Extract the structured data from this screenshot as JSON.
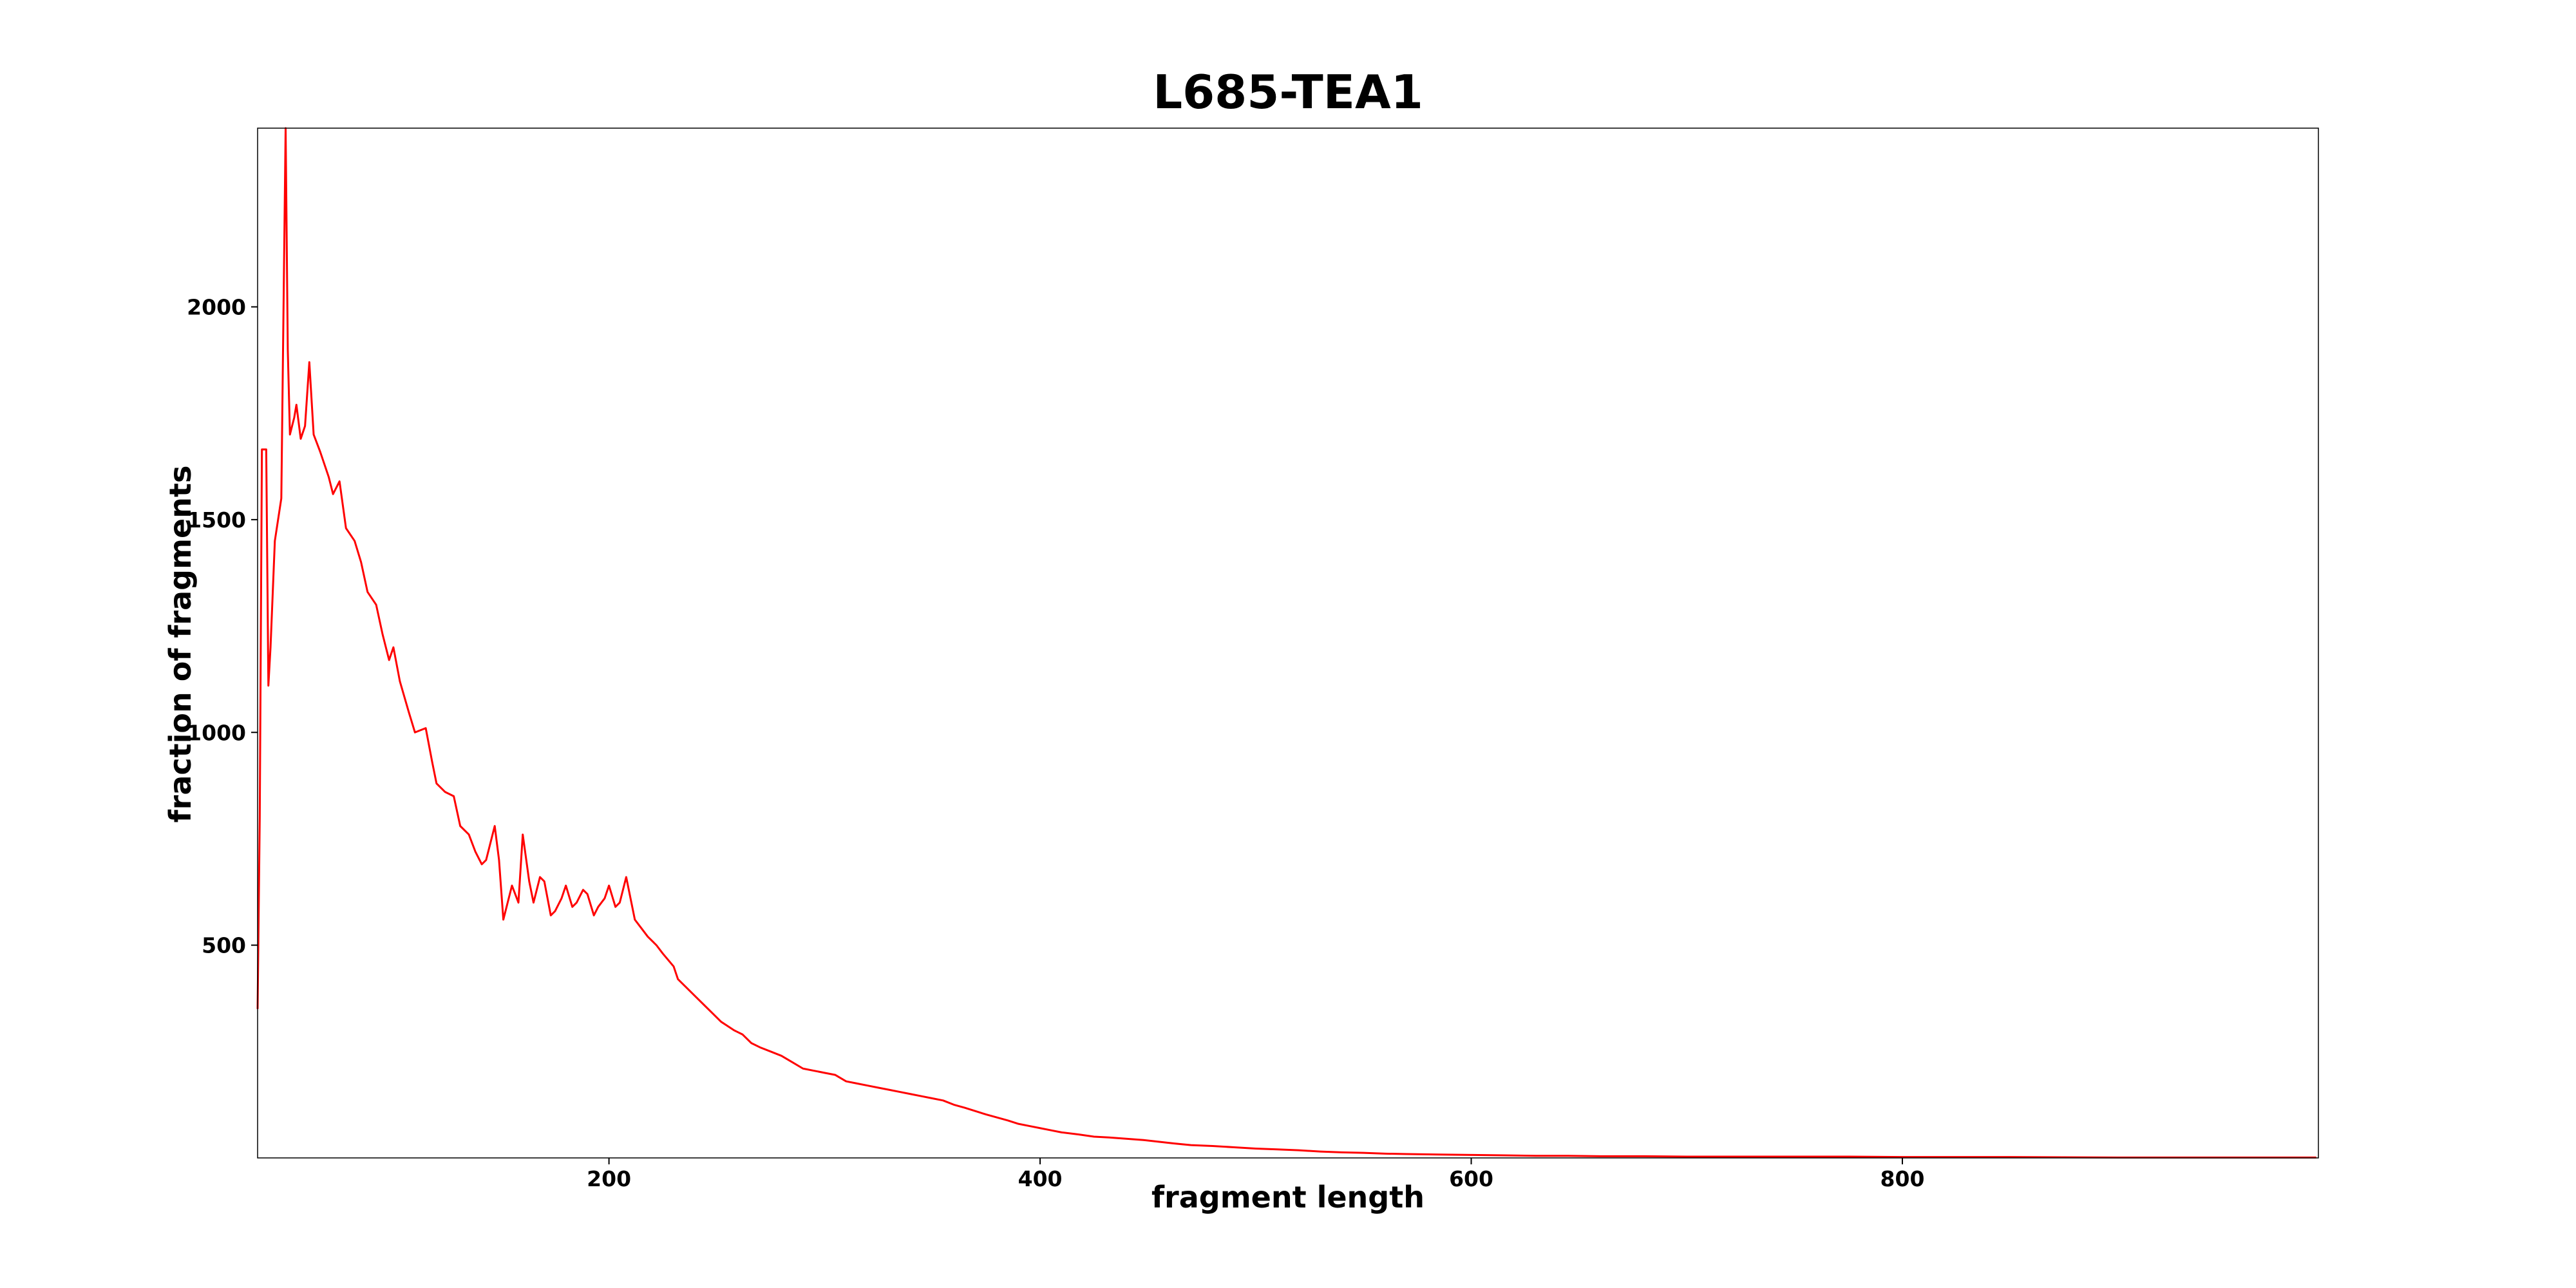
{
  "chart_data": {
    "type": "line",
    "title": "L685-TEA1",
    "x_label": "fragment length",
    "y_label": "fraction of fragments",
    "x": [
      37,
      38,
      39,
      41,
      42,
      43,
      45,
      48,
      50,
      51,
      52,
      54,
      55,
      57,
      59,
      61,
      63,
      66,
      70,
      72,
      75,
      78,
      82,
      85,
      88,
      92,
      95,
      98,
      100,
      103,
      107,
      110,
      115,
      118,
      120,
      124,
      128,
      131,
      135,
      138,
      141,
      143,
      147,
      149,
      151,
      155,
      158,
      160,
      163,
      165,
      168,
      170,
      173,
      175,
      178,
      180,
      183,
      185,
      188,
      190,
      193,
      195,
      198,
      200,
      203,
      205,
      208,
      212,
      215,
      218,
      222,
      225,
      230,
      232,
      236,
      240,
      244,
      248,
      252,
      255,
      258,
      262,
      266,
      270,
      275,
      280,
      285,
      290,
      295,
      300,
      305,
      310,
      315,
      320,
      325,
      330,
      335,
      340,
      345,
      350,
      355,
      360,
      365,
      370,
      375,
      380,
      385,
      390,
      395,
      400,
      405,
      410,
      418,
      425,
      432,
      440,
      448,
      455,
      462,
      470,
      480,
      490,
      500,
      510,
      520,
      530,
      540,
      550,
      560,
      570,
      585,
      600,
      615,
      630,
      645,
      660,
      680,
      700,
      725,
      750,
      775,
      800,
      850,
      900,
      950,
      992
    ],
    "values": [
      350,
      800,
      1665,
      1665,
      1110,
      1200,
      1450,
      1550,
      2420,
      1900,
      1700,
      1740,
      1770,
      1690,
      1720,
      1870,
      1700,
      1660,
      1600,
      1560,
      1590,
      1480,
      1450,
      1400,
      1330,
      1300,
      1230,
      1170,
      1200,
      1120,
      1050,
      1000,
      1010,
      930,
      880,
      860,
      850,
      780,
      760,
      720,
      690,
      700,
      780,
      700,
      560,
      640,
      600,
      760,
      650,
      600,
      660,
      650,
      570,
      580,
      610,
      640,
      590,
      600,
      630,
      620,
      570,
      590,
      610,
      640,
      590,
      600,
      660,
      560,
      540,
      520,
      500,
      480,
      450,
      420,
      400,
      380,
      360,
      340,
      320,
      310,
      300,
      290,
      270,
      260,
      250,
      240,
      225,
      210,
      205,
      200,
      195,
      180,
      175,
      170,
      165,
      160,
      155,
      150,
      145,
      140,
      135,
      125,
      118,
      110,
      102,
      95,
      88,
      80,
      75,
      70,
      65,
      60,
      55,
      50,
      48,
      45,
      42,
      38,
      34,
      30,
      28,
      25,
      22,
      20,
      18,
      15,
      13,
      12,
      10,
      9,
      8,
      7,
      6,
      5,
      5,
      4,
      4,
      3,
      3,
      3,
      3,
      2,
      2,
      1,
      1,
      1
    ],
    "color": "#ff0000",
    "xlim": [
      37,
      993
    ],
    "ylim": [
      0,
      2420
    ],
    "xticks": [
      200,
      400,
      600,
      800
    ],
    "yticks": [
      500,
      1000,
      1500,
      2000
    ],
    "grid": false
  }
}
